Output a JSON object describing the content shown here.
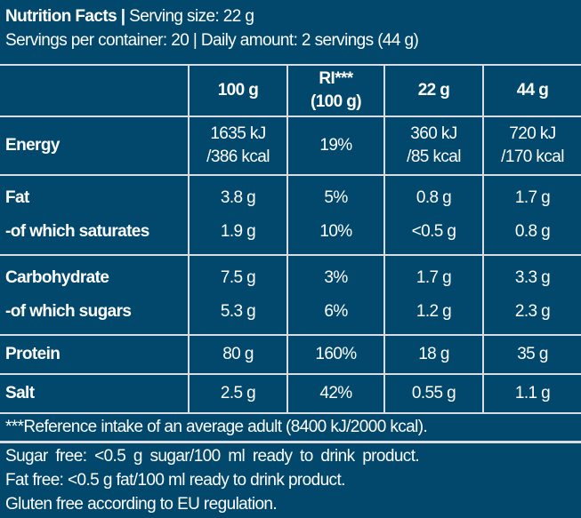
{
  "header": {
    "title": "Nutrition Facts",
    "serving_size": "Serving size: 22 g",
    "line2": "Servings per container: 20 | Daily amount: 2 servings (44 g)"
  },
  "table": {
    "columns": [
      "",
      "100 g",
      "RI***\n(100 g)",
      "22 g",
      "44 g"
    ],
    "col_ri_line1": "RI***",
    "col_ri_line2": "(100 g)",
    "rows": [
      {
        "name": "Energy",
        "v100_1": "1635 kJ",
        "v100_2": "/386 kcal",
        "ri": "19%",
        "v22_1": "360 kJ",
        "v22_2": "/85 kcal",
        "v44_1": "720 kJ",
        "v44_2": "/170 kcal"
      },
      {
        "name": "Fat",
        "v100": "3.8 g",
        "ri": "5%",
        "v22": "0.8 g",
        "v44": "1.7 g"
      },
      {
        "name": "-of which saturates",
        "v100": "1.9 g",
        "ri": "10%",
        "v22": "<0.5 g",
        "v44": "0.8 g"
      },
      {
        "name": "Carbohydrate",
        "v100": "7.5 g",
        "ri": "3%",
        "v22": "1.7 g",
        "v44": "3.3 g"
      },
      {
        "name": "-of which sugars",
        "v100": "5.3 g",
        "ri": "6%",
        "v22": "1.2 g",
        "v44": "2.3 g"
      },
      {
        "name": "Protein",
        "v100": "80 g",
        "ri": "160%",
        "v22": "18 g",
        "v44": "35 g"
      },
      {
        "name": "Salt",
        "v100": "2.5 g",
        "ri": "42%",
        "v22": "0.55 g",
        "v44": "1.1 g"
      }
    ],
    "footnote": "***Reference intake of an average adult (8400 kJ/2000 kcal)."
  },
  "notes": [
    "Sugar free: <0.5 g sugar/100 ml ready to drink product.",
    "Fat free: <0.5 g fat/100 ml ready to drink product.",
    "Gluten free according to EU regulation."
  ],
  "colors": {
    "background": "#02486c",
    "lines": "#d9dde2",
    "text": "#ffffff"
  }
}
